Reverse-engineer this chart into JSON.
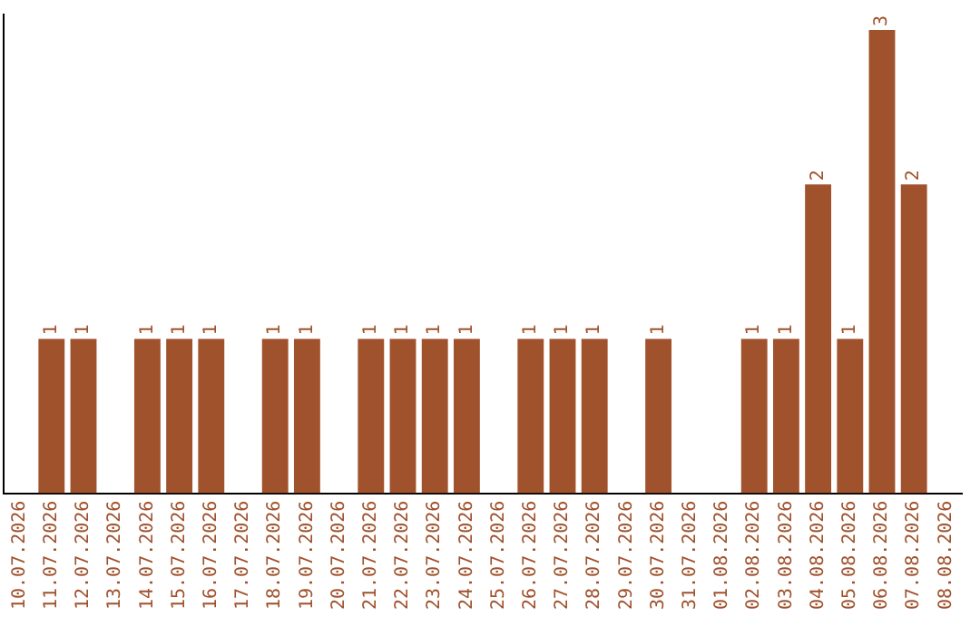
{
  "chart_data": {
    "type": "bar",
    "categories": [
      "10.07.2026",
      "11.07.2026",
      "12.07.2026",
      "13.07.2026",
      "14.07.2026",
      "15.07.2026",
      "16.07.2026",
      "17.07.2026",
      "18.07.2026",
      "19.07.2026",
      "20.07.2026",
      "21.07.2026",
      "22.07.2026",
      "23.07.2026",
      "24.07.2026",
      "25.07.2026",
      "26.07.2026",
      "27.07.2026",
      "28.07.2026",
      "29.07.2026",
      "30.07.2026",
      "31.07.2026",
      "01.08.2026",
      "02.08.2026",
      "03.08.2026",
      "04.08.2026",
      "05.08.2026",
      "06.08.2026",
      "07.08.2026",
      "08.08.2026"
    ],
    "values": [
      null,
      1,
      1,
      null,
      1,
      1,
      1,
      null,
      1,
      1,
      null,
      1,
      1,
      1,
      1,
      null,
      1,
      1,
      1,
      null,
      1,
      null,
      null,
      1,
      1,
      2,
      1,
      3,
      2,
      null
    ],
    "color": "#a0522d",
    "ylim": [
      0,
      3.1
    ],
    "tick_labels": "x",
    "grid": false,
    "legend": false,
    "data_labels": true
  }
}
